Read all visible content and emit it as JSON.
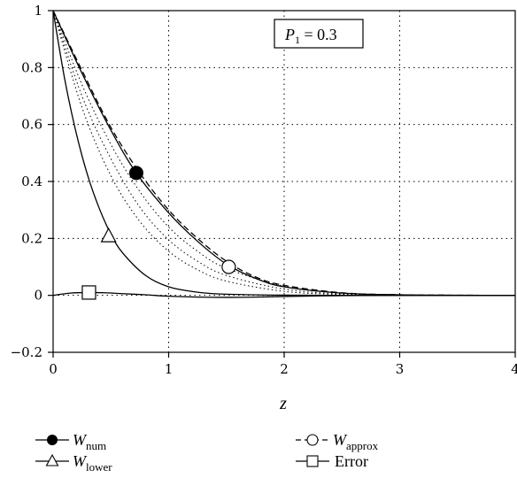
{
  "chart_data": {
    "type": "line",
    "xlabel": "z",
    "xlim": [
      0,
      4
    ],
    "ylim": [
      -0.2,
      1
    ],
    "x_ticks": [
      0,
      1,
      2,
      3,
      4
    ],
    "x_tick_labels": [
      "0",
      "1",
      "2",
      "3",
      "4"
    ],
    "y_ticks": [
      -0.2,
      0,
      0.2,
      0.4,
      0.6,
      0.8,
      1
    ],
    "y_tick_labels": [
      "−0.2",
      "0",
      "0.2",
      "0.4",
      "0.6",
      "0.8",
      "1"
    ],
    "grid": true,
    "annotation": {
      "symbol": "P",
      "subscript": "1",
      "text": " = 0.3"
    },
    "series": [
      {
        "name": "W",
        "subscript": "num",
        "marker": "filled-circle",
        "line": "solid",
        "x": [
          0,
          0.25,
          0.5,
          0.72,
          1,
          1.25,
          1.5,
          1.75,
          2,
          2.5,
          3,
          3.5,
          4
        ],
        "y": [
          1,
          0.78,
          0.58,
          0.43,
          0.29,
          0.19,
          0.11,
          0.06,
          0.03,
          0.008,
          0.002,
          0.0005,
          0
        ],
        "marker_x": 0.72,
        "marker_y": 0.43
      },
      {
        "name": "W",
        "subscript": "approx",
        "marker": "open-circle",
        "line": "dashed",
        "x": [
          0,
          0.25,
          0.5,
          0.75,
          1,
          1.25,
          1.5,
          1.75,
          2,
          2.5,
          3,
          3.5,
          4
        ],
        "y": [
          1,
          0.79,
          0.59,
          0.43,
          0.3,
          0.2,
          0.12,
          0.065,
          0.035,
          0.009,
          0.002,
          0.0005,
          0
        ],
        "marker_x": 1.52,
        "marker_y": 0.1
      },
      {
        "name": "W",
        "subscript": "lower",
        "marker": "open-triangle",
        "line": "solid",
        "x": [
          0,
          0.1,
          0.2,
          0.3,
          0.4,
          0.5,
          0.6,
          0.8,
          1,
          1.25,
          1.5,
          2,
          2.5,
          3,
          4
        ],
        "y": [
          1,
          0.76,
          0.57,
          0.42,
          0.305,
          0.215,
          0.15,
          0.07,
          0.03,
          0.011,
          0.004,
          0.0007,
          0.0001,
          0,
          0
        ],
        "marker_x": 0.48,
        "marker_y": 0.21
      },
      {
        "name": "Error",
        "marker": "open-square",
        "line": "solid",
        "x": [
          0,
          0.15,
          0.3,
          0.45,
          0.6,
          0.8,
          1,
          1.25,
          1.5,
          1.75,
          2,
          2.5,
          3,
          4
        ],
        "y": [
          0,
          0.008,
          0.01,
          0.009,
          0.006,
          0.002,
          -0.003,
          -0.006,
          -0.007,
          -0.006,
          -0.004,
          -0.001,
          0,
          0
        ],
        "marker_x": 0.31,
        "marker_y": 0.01
      }
    ],
    "intermediate_curves": [
      {
        "x": [
          0,
          0.25,
          0.5,
          0.75,
          1,
          1.25,
          1.5,
          2,
          2.5,
          3,
          4
        ],
        "y": [
          1,
          0.66,
          0.42,
          0.26,
          0.155,
          0.09,
          0.05,
          0.014,
          0.003,
          0,
          0
        ]
      },
      {
        "x": [
          0,
          0.25,
          0.5,
          0.75,
          1,
          1.25,
          1.5,
          2,
          2.5,
          3,
          4
        ],
        "y": [
          1,
          0.7,
          0.48,
          0.31,
          0.195,
          0.12,
          0.07,
          0.022,
          0.005,
          0.001,
          0
        ]
      },
      {
        "x": [
          0,
          0.25,
          0.5,
          0.75,
          1,
          1.25,
          1.5,
          2,
          2.5,
          3,
          4
        ],
        "y": [
          1,
          0.74,
          0.53,
          0.365,
          0.24,
          0.155,
          0.095,
          0.032,
          0.008,
          0.001,
          0
        ]
      }
    ]
  }
}
